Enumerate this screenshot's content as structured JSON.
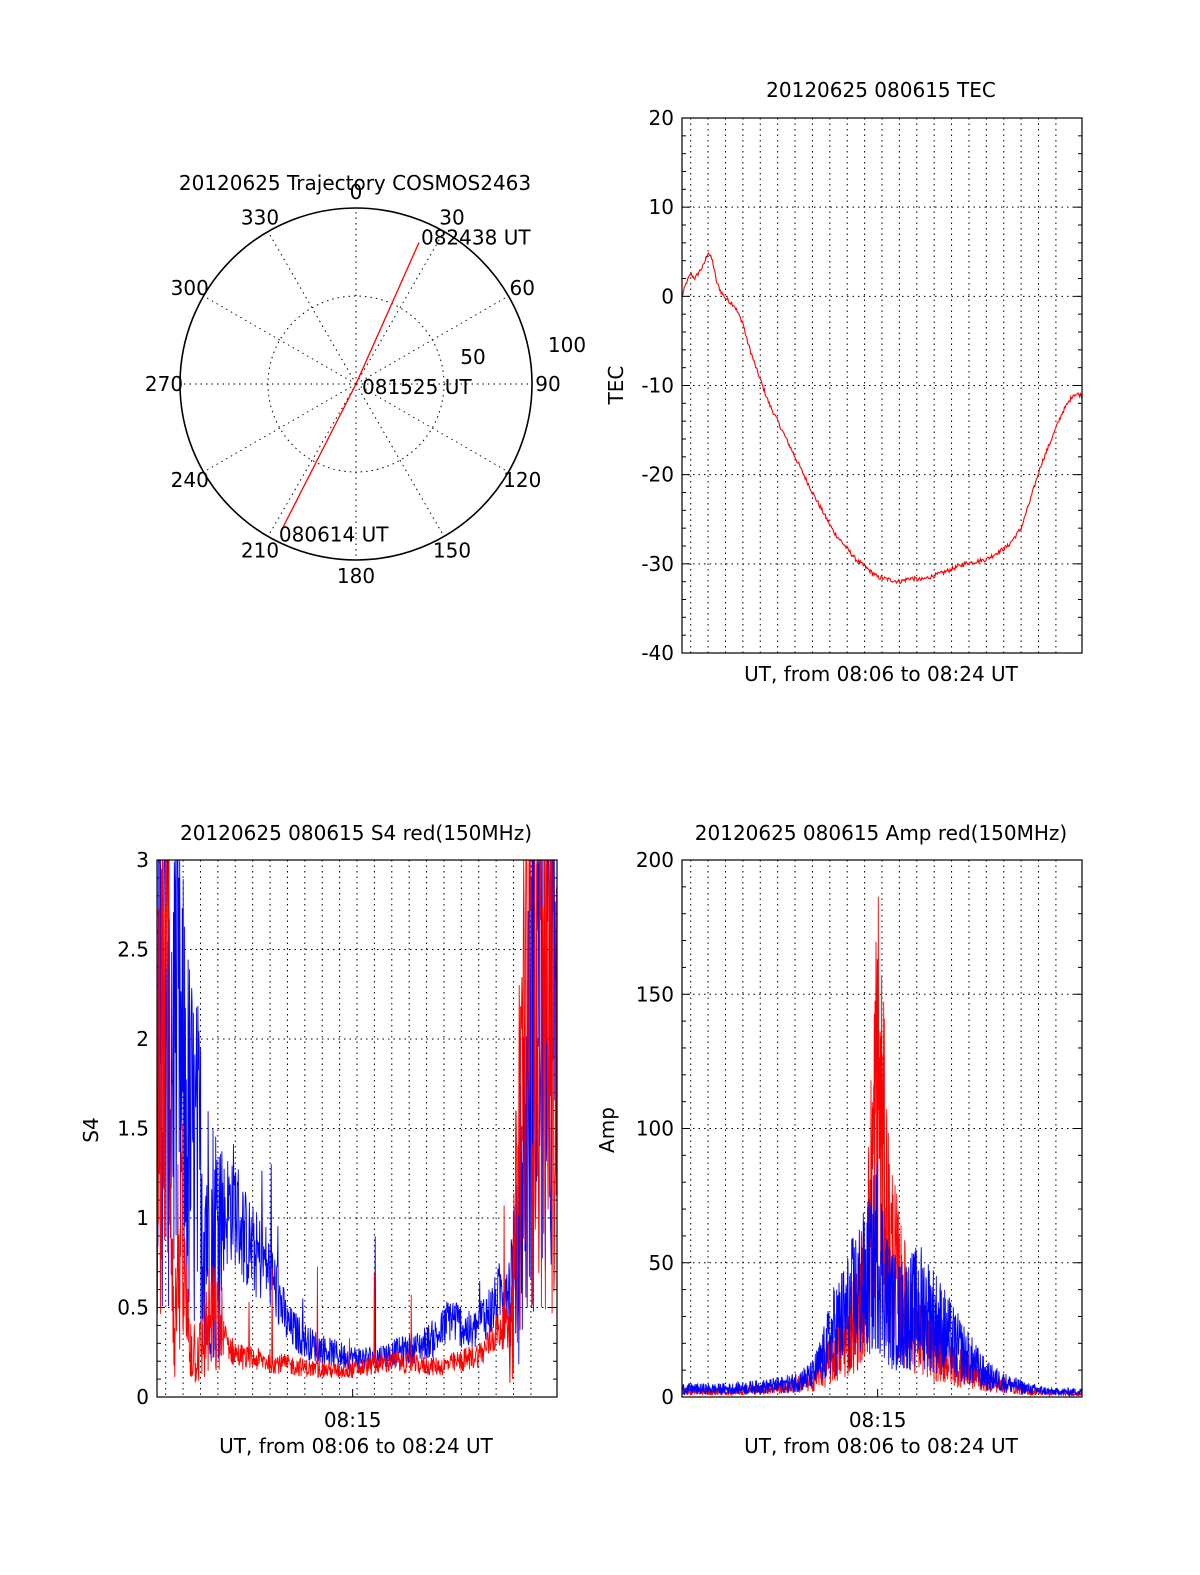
{
  "chart_data": [
    {
      "type": "polar",
      "title": "20120625 Trajectory COSMOS2463",
      "angle_labels": [
        "0",
        "30",
        "60",
        "90",
        "120",
        "150",
        "180",
        "210",
        "240",
        "270",
        "300",
        "330"
      ],
      "radius_labels": [
        "50",
        "100"
      ],
      "radius_max": 100,
      "trajectory": {
        "color": "#ff0000",
        "points": [
          {
            "az": 207,
            "r": 94,
            "label": "080614 UT"
          },
          {
            "az": 0,
            "r": 0,
            "label": "081525 UT"
          },
          {
            "az": 24,
            "r": 88,
            "label": "082438 UT"
          }
        ]
      }
    },
    {
      "type": "line",
      "title": "20120625 080615 TEC",
      "xlabel": "UT, from 08:06 to 08:24 UT",
      "ylabel": "TEC",
      "xlim": [
        0,
        18.4
      ],
      "ylim": [
        -40,
        20
      ],
      "yticks": [
        "20",
        "10",
        "0",
        "-10",
        "-20",
        "-30",
        "-40"
      ],
      "xgrid": [
        0.4,
        1.2,
        2.0,
        2.8,
        3.6,
        4.4,
        5.2,
        6.0,
        6.8,
        7.6,
        8.4,
        9.2,
        10.0,
        10.8,
        11.6,
        12.4,
        13.2,
        14.0,
        14.8,
        15.6,
        16.4,
        17.2
      ],
      "series": [
        {
          "color": "#ff0000",
          "x": [
            0,
            0.2,
            0.4,
            0.6,
            0.8,
            1.0,
            1.2,
            1.4,
            1.6,
            1.8,
            2.0,
            2.4,
            2.8,
            3.0,
            3.4,
            4.0,
            5.0,
            6.0,
            7.0,
            8.0,
            9.0,
            10.0,
            10.5,
            11.0,
            11.5,
            12.0,
            13.0,
            14.0,
            15.0,
            15.6,
            16.0,
            16.5,
            17.0,
            17.5,
            18.0,
            18.4
          ],
          "y": [
            0,
            1.5,
            2.5,
            2.0,
            2.8,
            3.5,
            5.0,
            4.0,
            1.5,
            0.5,
            -0.2,
            -1,
            -3,
            -5,
            -8,
            -12,
            -17,
            -22,
            -26.5,
            -29.5,
            -31.5,
            -32,
            -31.6,
            -31.8,
            -31.4,
            -31,
            -30,
            -29.5,
            -28,
            -26,
            -23,
            -19,
            -16,
            -13,
            -11,
            -11
          ]
        }
      ]
    },
    {
      "type": "line",
      "title": "20120625 080615 S4 red(150MHz)",
      "xlabel": "UT, from 08:06 to 08:24 UT",
      "ylabel": "S4",
      "xlim": [
        0,
        18.4
      ],
      "ylim": [
        0,
        3
      ],
      "xtick_labels": [
        {
          "x": 9,
          "label": "08:15"
        }
      ],
      "yticks": [
        "0",
        "0.5",
        "1",
        "1.5",
        "2",
        "2.5",
        "3"
      ],
      "xgrid": [
        0.4,
        1.2,
        2.0,
        2.8,
        3.6,
        4.4,
        5.2,
        6.0,
        6.8,
        7.6,
        8.4,
        9.2,
        10.0,
        10.8,
        11.6,
        12.4,
        13.2,
        14.0,
        14.8,
        15.6,
        16.4,
        17.2
      ],
      "series": [
        {
          "color": "#0000ff",
          "x": [
            0,
            0.5,
            1.0,
            1.5,
            2.0,
            2.5,
            3.0,
            3.5,
            4.0,
            4.5,
            5.0,
            5.5,
            6.0,
            7.0,
            8.0,
            9.0,
            10.0,
            11.0,
            12.0,
            13.0,
            13.5,
            14.0,
            14.5,
            15.0,
            15.5,
            16.0,
            16.5,
            17.0,
            17.5,
            18.0,
            18.4
          ],
          "y": [
            2.0,
            2.2,
            1.8,
            1.4,
            1.2,
            0.9,
            1.0,
            1.1,
            0.9,
            0.8,
            0.75,
            0.6,
            0.4,
            0.3,
            0.25,
            0.22,
            0.22,
            0.25,
            0.28,
            0.35,
            0.45,
            0.4,
            0.35,
            0.45,
            0.5,
            0.65,
            0.6,
            1.5,
            2.5,
            2.3,
            2.0
          ]
        },
        {
          "color": "#ff0000",
          "x": [
            0,
            0.5,
            0.8,
            1.0,
            1.5,
            2.0,
            2.5,
            3.0,
            3.5,
            4.0,
            5.0,
            6.0,
            7.0,
            8.0,
            9.0,
            10.0,
            11.0,
            12.0,
            13.0,
            14.0,
            15.0,
            15.5,
            16.0,
            16.3,
            16.5,
            17.0,
            17.5,
            18.0,
            18.4
          ],
          "y": [
            1.4,
            2.4,
            0.3,
            0.9,
            0.3,
            0.25,
            0.45,
            0.35,
            0.25,
            0.22,
            0.2,
            0.18,
            0.16,
            0.15,
            0.15,
            0.18,
            0.2,
            0.18,
            0.17,
            0.2,
            0.25,
            0.35,
            0.4,
            0.3,
            0.9,
            2.6,
            2.2,
            2.0,
            1.8
          ]
        }
      ]
    },
    {
      "type": "line",
      "title": "20120625 080615 Amp red(150MHz)",
      "xlabel": "UT, from 08:06 to 08:24 UT",
      "ylabel": "Amp",
      "xlim": [
        0,
        18.4
      ],
      "ylim": [
        0,
        200
      ],
      "xtick_labels": [
        {
          "x": 9,
          "label": "08:15"
        }
      ],
      "yticks": [
        "0",
        "50",
        "100",
        "150",
        "200"
      ],
      "xgrid": [
        0.4,
        1.2,
        2.0,
        2.8,
        3.6,
        4.4,
        5.2,
        6.0,
        6.8,
        7.6,
        8.4,
        9.2,
        10.0,
        10.8,
        11.6,
        12.4,
        13.2,
        14.0,
        14.8,
        15.6,
        16.4,
        17.2
      ],
      "series": [
        {
          "color": "#ff0000",
          "x": [
            0,
            2,
            4,
            5,
            6,
            7,
            7.5,
            8,
            8.5,
            9,
            9.5,
            10,
            10.5,
            11,
            12,
            13,
            14,
            15,
            16,
            18.4
          ],
          "y": [
            2,
            2,
            3,
            4,
            6,
            15,
            20,
            30,
            45,
            120,
            60,
            40,
            30,
            22,
            15,
            10,
            6,
            4,
            2,
            1
          ]
        },
        {
          "color": "#0000ff",
          "x": [
            0,
            2,
            4,
            5,
            6,
            6.5,
            7,
            7.5,
            8,
            8.5,
            9,
            9.5,
            10,
            10.5,
            11,
            11.5,
            12,
            12.5,
            13,
            13.5,
            14,
            15,
            16,
            17,
            18.4
          ],
          "y": [
            3,
            3,
            4,
            5,
            8,
            15,
            25,
            30,
            38,
            42,
            55,
            35,
            30,
            32,
            34,
            30,
            25,
            20,
            16,
            12,
            8,
            5,
            3,
            2,
            2
          ]
        }
      ]
    }
  ]
}
